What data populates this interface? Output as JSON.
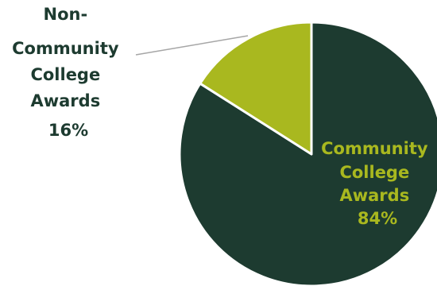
{
  "chart_data": {
    "type": "pie",
    "slices": [
      {
        "label_lines": [
          "Community",
          "College",
          "Awards",
          "84%"
        ],
        "label": "Community College Awards",
        "value": 84,
        "display": "84%",
        "color": "#1d3b30",
        "label_color": "#a9b81f"
      },
      {
        "label_lines": [
          "Non-",
          "Community",
          "College",
          "Awards",
          "16%"
        ],
        "label": "Non-Community College Awards",
        "value": 16,
        "display": "16%",
        "color": "#a9b81f",
        "label_color": "#1d3b30"
      }
    ],
    "start_angle_deg": 0,
    "direction": "clockwise",
    "slice_border_color": "#ffffff",
    "leader_line_color": "#a6a6a6"
  }
}
